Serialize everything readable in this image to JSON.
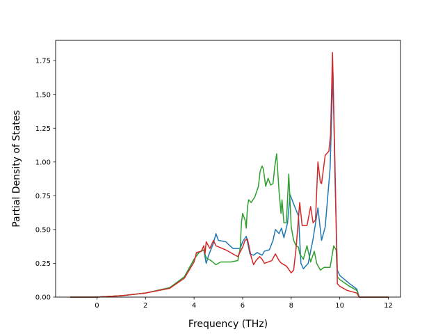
{
  "chart_data": {
    "type": "line",
    "title": "",
    "xlabel": "Frequency (THz)",
    "ylabel": "Partial Density of States",
    "xlim": [
      -1.7,
      12.5
    ],
    "ylim": [
      0,
      1.9
    ],
    "xticks": [
      0,
      2,
      4,
      6,
      8,
      10,
      12
    ],
    "yticks": [
      0.0,
      0.25,
      0.5,
      0.75,
      1.0,
      1.25,
      1.5,
      1.75
    ],
    "xtick_labels": [
      "0",
      "2",
      "4",
      "6",
      "8",
      "10",
      "12"
    ],
    "ytick_labels": [
      "0.00",
      "0.25",
      "0.50",
      "0.75",
      "1.00",
      "1.25",
      "1.50",
      "1.75"
    ],
    "grid": false,
    "series": [
      {
        "color": "#1f77b4",
        "points": [
          [
            -1.1,
            0
          ],
          [
            0,
            0
          ],
          [
            1,
            0.01
          ],
          [
            2,
            0.03
          ],
          [
            3,
            0.07
          ],
          [
            3.6,
            0.15
          ],
          [
            4.0,
            0.28
          ],
          [
            4.2,
            0.33
          ],
          [
            4.4,
            0.35
          ],
          [
            4.5,
            0.25
          ],
          [
            4.6,
            0.31
          ],
          [
            4.8,
            0.4
          ],
          [
            4.9,
            0.47
          ],
          [
            5.0,
            0.42
          ],
          [
            5.3,
            0.41
          ],
          [
            5.6,
            0.36
          ],
          [
            5.9,
            0.36
          ],
          [
            6.0,
            0.41
          ],
          [
            6.15,
            0.45
          ],
          [
            6.3,
            0.32
          ],
          [
            6.45,
            0.31
          ],
          [
            6.6,
            0.33
          ],
          [
            6.8,
            0.31
          ],
          [
            6.9,
            0.34
          ],
          [
            7.1,
            0.35
          ],
          [
            7.25,
            0.42
          ],
          [
            7.35,
            0.5
          ],
          [
            7.5,
            0.47
          ],
          [
            7.6,
            0.51
          ],
          [
            7.7,
            0.44
          ],
          [
            7.85,
            0.55
          ],
          [
            7.95,
            0.76
          ],
          [
            8.1,
            0.69
          ],
          [
            8.3,
            0.6
          ],
          [
            8.4,
            0.25
          ],
          [
            8.5,
            0.21
          ],
          [
            8.7,
            0.25
          ],
          [
            8.9,
            0.43
          ],
          [
            9.1,
            0.66
          ],
          [
            9.25,
            0.42
          ],
          [
            9.4,
            0.52
          ],
          [
            9.6,
            0.95
          ],
          [
            9.72,
            1.66
          ],
          [
            9.8,
            0.9
          ],
          [
            9.9,
            0.2
          ],
          [
            10.0,
            0.16
          ],
          [
            10.4,
            0.1
          ],
          [
            10.7,
            0.06
          ],
          [
            10.8,
            0
          ],
          [
            12,
            0
          ]
        ]
      },
      {
        "color": "#2ca02c",
        "points": [
          [
            -1.1,
            0
          ],
          [
            0,
            0
          ],
          [
            1,
            0.01
          ],
          [
            2,
            0.03
          ],
          [
            3,
            0.07
          ],
          [
            3.6,
            0.15
          ],
          [
            4.0,
            0.28
          ],
          [
            4.2,
            0.33
          ],
          [
            4.4,
            0.35
          ],
          [
            4.5,
            0.29
          ],
          [
            4.7,
            0.27
          ],
          [
            4.9,
            0.24
          ],
          [
            5.1,
            0.26
          ],
          [
            5.5,
            0.26
          ],
          [
            5.8,
            0.27
          ],
          [
            5.9,
            0.36
          ],
          [
            5.95,
            0.55
          ],
          [
            6.0,
            0.62
          ],
          [
            6.1,
            0.57
          ],
          [
            6.15,
            0.51
          ],
          [
            6.2,
            0.67
          ],
          [
            6.25,
            0.72
          ],
          [
            6.35,
            0.7
          ],
          [
            6.5,
            0.74
          ],
          [
            6.65,
            0.82
          ],
          [
            6.72,
            0.93
          ],
          [
            6.8,
            0.97
          ],
          [
            6.85,
            0.95
          ],
          [
            6.95,
            0.82
          ],
          [
            7.05,
            0.88
          ],
          [
            7.15,
            0.83
          ],
          [
            7.25,
            0.84
          ],
          [
            7.32,
            0.96
          ],
          [
            7.4,
            1.06
          ],
          [
            7.5,
            0.78
          ],
          [
            7.58,
            0.62
          ],
          [
            7.62,
            0.72
          ],
          [
            7.7,
            0.55
          ],
          [
            7.8,
            0.55
          ],
          [
            7.9,
            0.91
          ],
          [
            8.0,
            0.52
          ],
          [
            8.1,
            0.42
          ],
          [
            8.2,
            0.38
          ],
          [
            8.3,
            0.37
          ],
          [
            8.35,
            0.32
          ],
          [
            8.5,
            0.28
          ],
          [
            8.65,
            0.38
          ],
          [
            8.8,
            0.26
          ],
          [
            8.95,
            0.34
          ],
          [
            9.05,
            0.25
          ],
          [
            9.2,
            0.2
          ],
          [
            9.35,
            0.22
          ],
          [
            9.6,
            0.22
          ],
          [
            9.75,
            0.38
          ],
          [
            9.85,
            0.35
          ],
          [
            9.9,
            0.15
          ],
          [
            10.0,
            0.13
          ],
          [
            10.4,
            0.08
          ],
          [
            10.7,
            0.05
          ],
          [
            10.8,
            0
          ],
          [
            12,
            0
          ]
        ]
      },
      {
        "color": "#d62728",
        "points": [
          [
            -1.1,
            0
          ],
          [
            0,
            0
          ],
          [
            1,
            0.01
          ],
          [
            2,
            0.03
          ],
          [
            3,
            0.065
          ],
          [
            3.6,
            0.14
          ],
          [
            4.0,
            0.26
          ],
          [
            4.1,
            0.33
          ],
          [
            4.3,
            0.34
          ],
          [
            4.4,
            0.38
          ],
          [
            4.45,
            0.32
          ],
          [
            4.5,
            0.41
          ],
          [
            4.65,
            0.36
          ],
          [
            4.8,
            0.42
          ],
          [
            4.9,
            0.38
          ],
          [
            5.3,
            0.35
          ],
          [
            5.6,
            0.32
          ],
          [
            5.8,
            0.3
          ],
          [
            6.0,
            0.37
          ],
          [
            6.1,
            0.42
          ],
          [
            6.2,
            0.43
          ],
          [
            6.35,
            0.3
          ],
          [
            6.45,
            0.24
          ],
          [
            6.55,
            0.27
          ],
          [
            6.7,
            0.3
          ],
          [
            6.8,
            0.28
          ],
          [
            6.9,
            0.25
          ],
          [
            7.2,
            0.27
          ],
          [
            7.35,
            0.32
          ],
          [
            7.5,
            0.27
          ],
          [
            7.6,
            0.25
          ],
          [
            7.8,
            0.23
          ],
          [
            8.0,
            0.18
          ],
          [
            8.1,
            0.2
          ],
          [
            8.2,
            0.36
          ],
          [
            8.35,
            0.7
          ],
          [
            8.45,
            0.53
          ],
          [
            8.65,
            0.53
          ],
          [
            8.8,
            0.67
          ],
          [
            8.9,
            0.55
          ],
          [
            9.0,
            0.57
          ],
          [
            9.1,
            1.0
          ],
          [
            9.2,
            0.85
          ],
          [
            9.25,
            0.84
          ],
          [
            9.4,
            1.05
          ],
          [
            9.55,
            1.08
          ],
          [
            9.62,
            1.2
          ],
          [
            9.7,
            1.81
          ],
          [
            9.8,
            1.0
          ],
          [
            9.9,
            0.1
          ],
          [
            10.0,
            0.08
          ],
          [
            10.3,
            0.05
          ],
          [
            10.7,
            0.03
          ],
          [
            10.8,
            0
          ],
          [
            12,
            0
          ]
        ]
      }
    ]
  }
}
